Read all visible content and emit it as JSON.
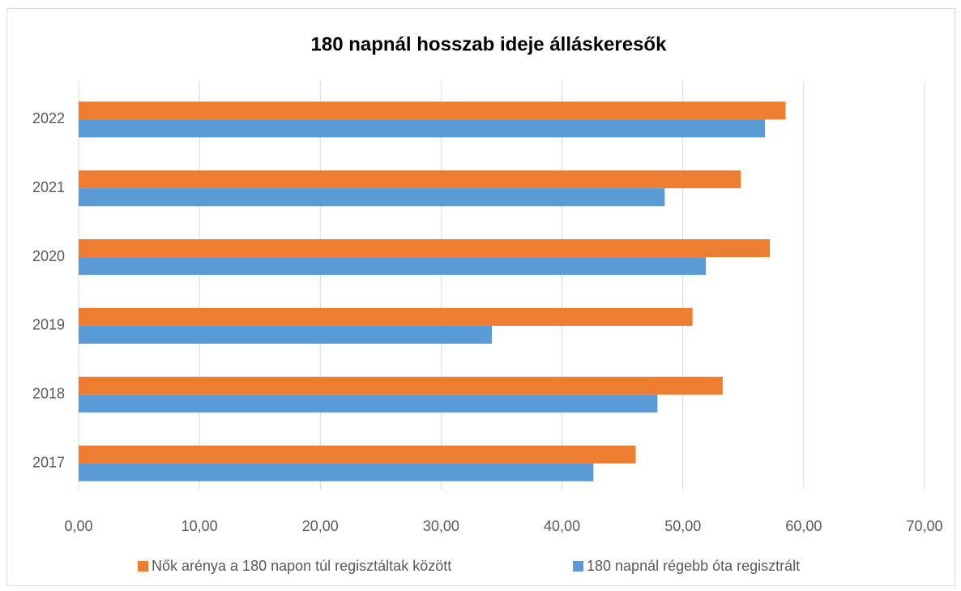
{
  "chart_data": {
    "type": "barh",
    "title": "180 napnál hosszab ideje álláskeresők",
    "categories": [
      "2017",
      "2018",
      "2019",
      "2020",
      "2021",
      "2022"
    ],
    "series": [
      {
        "name": "Nők arénya a 180 napon túl regisztáltak között",
        "color": "#ed7d31",
        "values": [
          46.1,
          53.3,
          50.8,
          57.2,
          54.8,
          58.5
        ]
      },
      {
        "name": "180 napnál régebb óta regisztrált",
        "color": "#5b9bd5",
        "values": [
          42.6,
          47.9,
          34.2,
          51.9,
          48.5,
          56.8
        ]
      }
    ],
    "xlim": [
      0,
      70
    ],
    "xticks": [
      {
        "value": 0,
        "label": "0,00"
      },
      {
        "value": 10,
        "label": "10,00"
      },
      {
        "value": 20,
        "label": "20,00"
      },
      {
        "value": 30,
        "label": "30,00"
      },
      {
        "value": 40,
        "label": "40,00"
      },
      {
        "value": 50,
        "label": "50,00"
      },
      {
        "value": 60,
        "label": "60,00"
      },
      {
        "value": 70,
        "label": "70,00"
      }
    ],
    "grid": true,
    "legend": "bottom"
  }
}
